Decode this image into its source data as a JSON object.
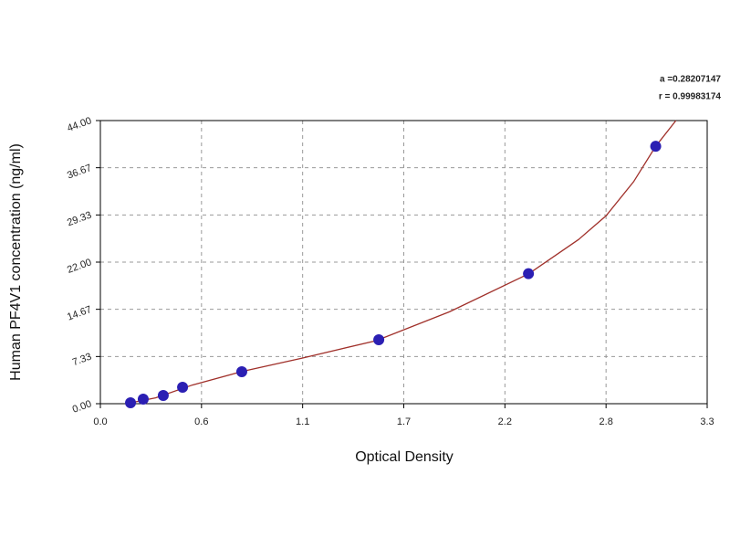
{
  "chart_data": {
    "type": "scatter",
    "xlabel": "Optical Density",
    "ylabel": "Human  PF4V1 concentration (ng/ml)",
    "annotations": [
      "a =0.28207147",
      "r = 0.99983174"
    ],
    "xlim": [
      0,
      3.3
    ],
    "xticks": [
      {
        "value": 0,
        "label": "0.0"
      },
      {
        "value": 0.55,
        "label": "0.6"
      },
      1.1,
      {
        "value": 1.65,
        "label": "1.7"
      },
      2.2,
      {
        "value": 2.75,
        "label": "2.8"
      },
      3.3
    ],
    "ylim": [
      0,
      44
    ],
    "yticks": [
      {
        "value": 0,
        "label": "0.00"
      },
      7.33,
      14.67,
      {
        "value": 22,
        "label": "22.00"
      },
      29.33,
      36.67,
      {
        "value": 44,
        "label": "44.00"
      }
    ],
    "grid": true,
    "x": [
      0.164,
      0.233,
      0.342,
      0.447,
      0.769,
      1.514,
      2.328,
      3.02
    ],
    "values": [
      0.14,
      0.71,
      1.28,
      2.56,
      4.97,
      9.94,
      20.2,
      40.0
    ],
    "color": "#2b1fb3",
    "fit": {
      "color": "#a0302a",
      "x": [
        0.15,
        0.3,
        0.5,
        0.77,
        1.1,
        1.5,
        1.9,
        2.33,
        2.6,
        2.75,
        2.9,
        3.02,
        3.13
      ],
      "y": [
        0.05,
        0.9,
        2.9,
        5.0,
        7.1,
        9.8,
        14.3,
        20.2,
        25.5,
        29.2,
        34.5,
        40.0,
        44.0
      ]
    }
  }
}
